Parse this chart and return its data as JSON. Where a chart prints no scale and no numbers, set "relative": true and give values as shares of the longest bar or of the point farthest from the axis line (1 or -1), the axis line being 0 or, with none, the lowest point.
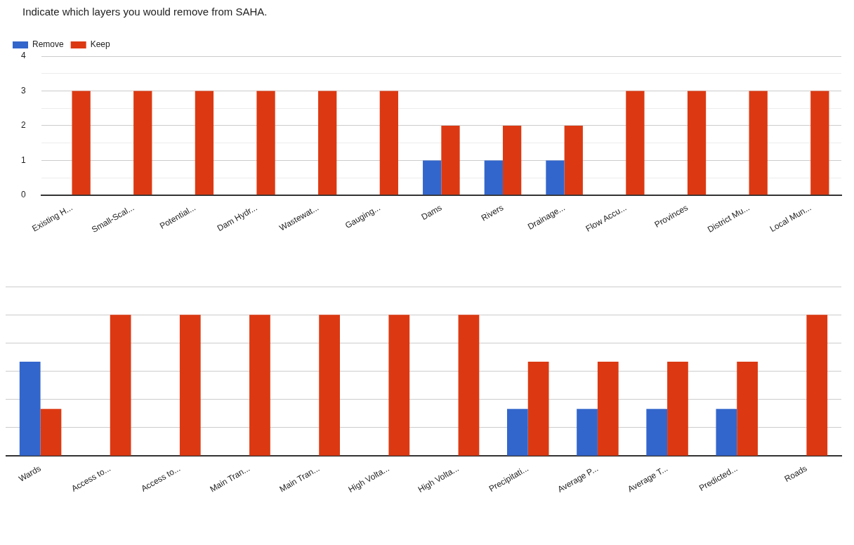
{
  "chart_data": [
    {
      "type": "bar",
      "title": "Indicate which layers you would remove from SAHA.",
      "categories": [
        "Existing H...",
        "Small-Scal...",
        "Potential...",
        "Dam Hydr...",
        "Wastewat...",
        "Gauging...",
        "Dams",
        "Rivers",
        "Drainage...",
        "Flow Accu...",
        "Provinces",
        "District Mu...",
        "Local Mun..."
      ],
      "series": [
        {
          "name": "Remove",
          "color": "#3366cc",
          "values": [
            0,
            0,
            0,
            0,
            0,
            0,
            1,
            1,
            1,
            0,
            0,
            0,
            0
          ]
        },
        {
          "name": "Keep",
          "color": "#dc3912",
          "values": [
            3,
            3,
            3,
            3,
            3,
            3,
            2,
            2,
            2,
            3,
            3,
            3,
            3
          ]
        }
      ],
      "ylim": [
        0,
        4
      ],
      "yticks": [
        0,
        {
          "value": 0.5,
          "label": null
        },
        1,
        {
          "value": 1.5,
          "label": null
        },
        2,
        {
          "value": 2.5,
          "label": null
        },
        3,
        {
          "value": 3.5,
          "label": null
        },
        4
      ],
      "grid": "y",
      "legend": "top left"
    },
    {
      "type": "bar",
      "categories": [
        "Wards",
        "Access to...",
        "Access to...",
        "Main Tran...",
        "Main Tran...",
        "High Volta...",
        "High Volta...",
        "Precipitati...",
        "Average P...",
        "Average T...",
        "Predicted...",
        "Roads"
      ],
      "series": [
        {
          "color": "#3366cc",
          "values": [
            0.667,
            0,
            0,
            0,
            0,
            0,
            0,
            0.333,
            0.333,
            0.333,
            0.333,
            0
          ]
        },
        {
          "color": "#dc3912",
          "values": [
            0.333,
            1,
            1,
            1,
            1,
            1,
            1,
            0.667,
            0.667,
            0.667,
            0.667,
            1
          ]
        }
      ],
      "relative": true,
      "grid": "y",
      "tick_labels": "x"
    }
  ]
}
